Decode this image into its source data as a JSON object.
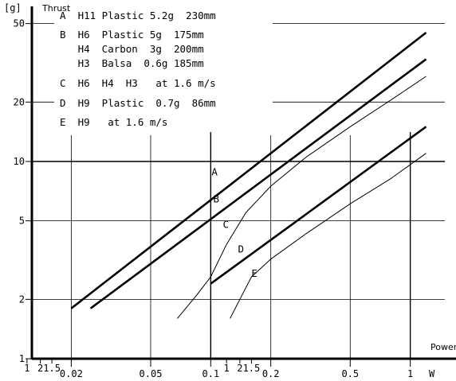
{
  "chart_data": {
    "type": "line",
    "x_scale": "log",
    "y_scale": "log",
    "xlabel": "Power",
    "ylabel": "Thrust",
    "y_unit": "[g]",
    "x_unit": "W",
    "xlim": [
      0.0127,
      1.49
    ],
    "ylim": [
      1,
      60
    ],
    "x_ticks": [
      {
        "v": 0.02,
        "label": "0.02"
      },
      {
        "v": 0.05,
        "label": "0.05"
      },
      {
        "v": 0.1,
        "label": "0.1"
      },
      {
        "v": 0.2,
        "label": "0.2"
      },
      {
        "v": 0.5,
        "label": "0.5"
      },
      {
        "v": 1,
        "label": "1"
      }
    ],
    "x_minor_ticks": [
      {
        "v": 0.012,
        "label": "1"
      },
      {
        "v": 0.014,
        "label": "2"
      },
      {
        "v": 0.016,
        "label": "1.5"
      },
      {
        "v": 0.12,
        "label": "1"
      },
      {
        "v": 0.14,
        "label": "2"
      },
      {
        "v": 0.16,
        "label": "1.5"
      }
    ],
    "y_ticks": [
      {
        "v": 1,
        "label": "1"
      },
      {
        "v": 2,
        "label": "2"
      },
      {
        "v": 5,
        "label": "5"
      },
      {
        "v": 10,
        "label": "10"
      },
      {
        "v": 20,
        "label": "20"
      },
      {
        "v": 50,
        "label": "50"
      }
    ],
    "legend": [
      "A  H11 Plastic 5.2g  230mm",
      "B  H6  Plastic 5g  175mm",
      "   H4  Carbon  3g  200mm",
      "   H3  Balsa  0.6g 185mm",
      "C  H6  H4  H3   at 1.6 m/s",
      "D  H9  Plastic  0.7g  86mm",
      "E  H9   at 1.6 m/s"
    ],
    "series": [
      {
        "name": "A",
        "weight": "thick",
        "x": [
          0.02,
          1.2
        ],
        "y": [
          1.8,
          45
        ]
      },
      {
        "name": "B",
        "weight": "thick",
        "x": [
          0.025,
          1.2
        ],
        "y": [
          1.8,
          33
        ]
      },
      {
        "name": "C",
        "weight": "thin",
        "x": [
          0.068,
          0.085,
          0.1,
          0.12,
          0.15,
          0.2,
          0.3,
          0.5,
          0.8,
          1.2
        ],
        "y": [
          1.6,
          2.1,
          2.6,
          3.8,
          5.5,
          7.5,
          10.5,
          15,
          20.5,
          27
        ]
      },
      {
        "name": "D",
        "weight": "thick",
        "x": [
          0.1,
          1.2
        ],
        "y": [
          2.4,
          15
        ]
      },
      {
        "name": "E",
        "weight": "thin",
        "x": [
          0.125,
          0.14,
          0.16,
          0.2,
          0.3,
          0.5,
          0.8,
          1.2
        ],
        "y": [
          1.6,
          2.0,
          2.6,
          3.2,
          4.3,
          6.1,
          8.2,
          11
        ]
      }
    ],
    "curve_labels": [
      {
        "text": "A",
        "x": 0.101,
        "y": 8.5
      },
      {
        "text": "B",
        "x": 0.103,
        "y": 6.2
      },
      {
        "text": "C",
        "x": 0.115,
        "y": 4.6
      },
      {
        "text": "D",
        "x": 0.137,
        "y": 3.45
      },
      {
        "text": "E",
        "x": 0.16,
        "y": 2.6
      }
    ]
  }
}
